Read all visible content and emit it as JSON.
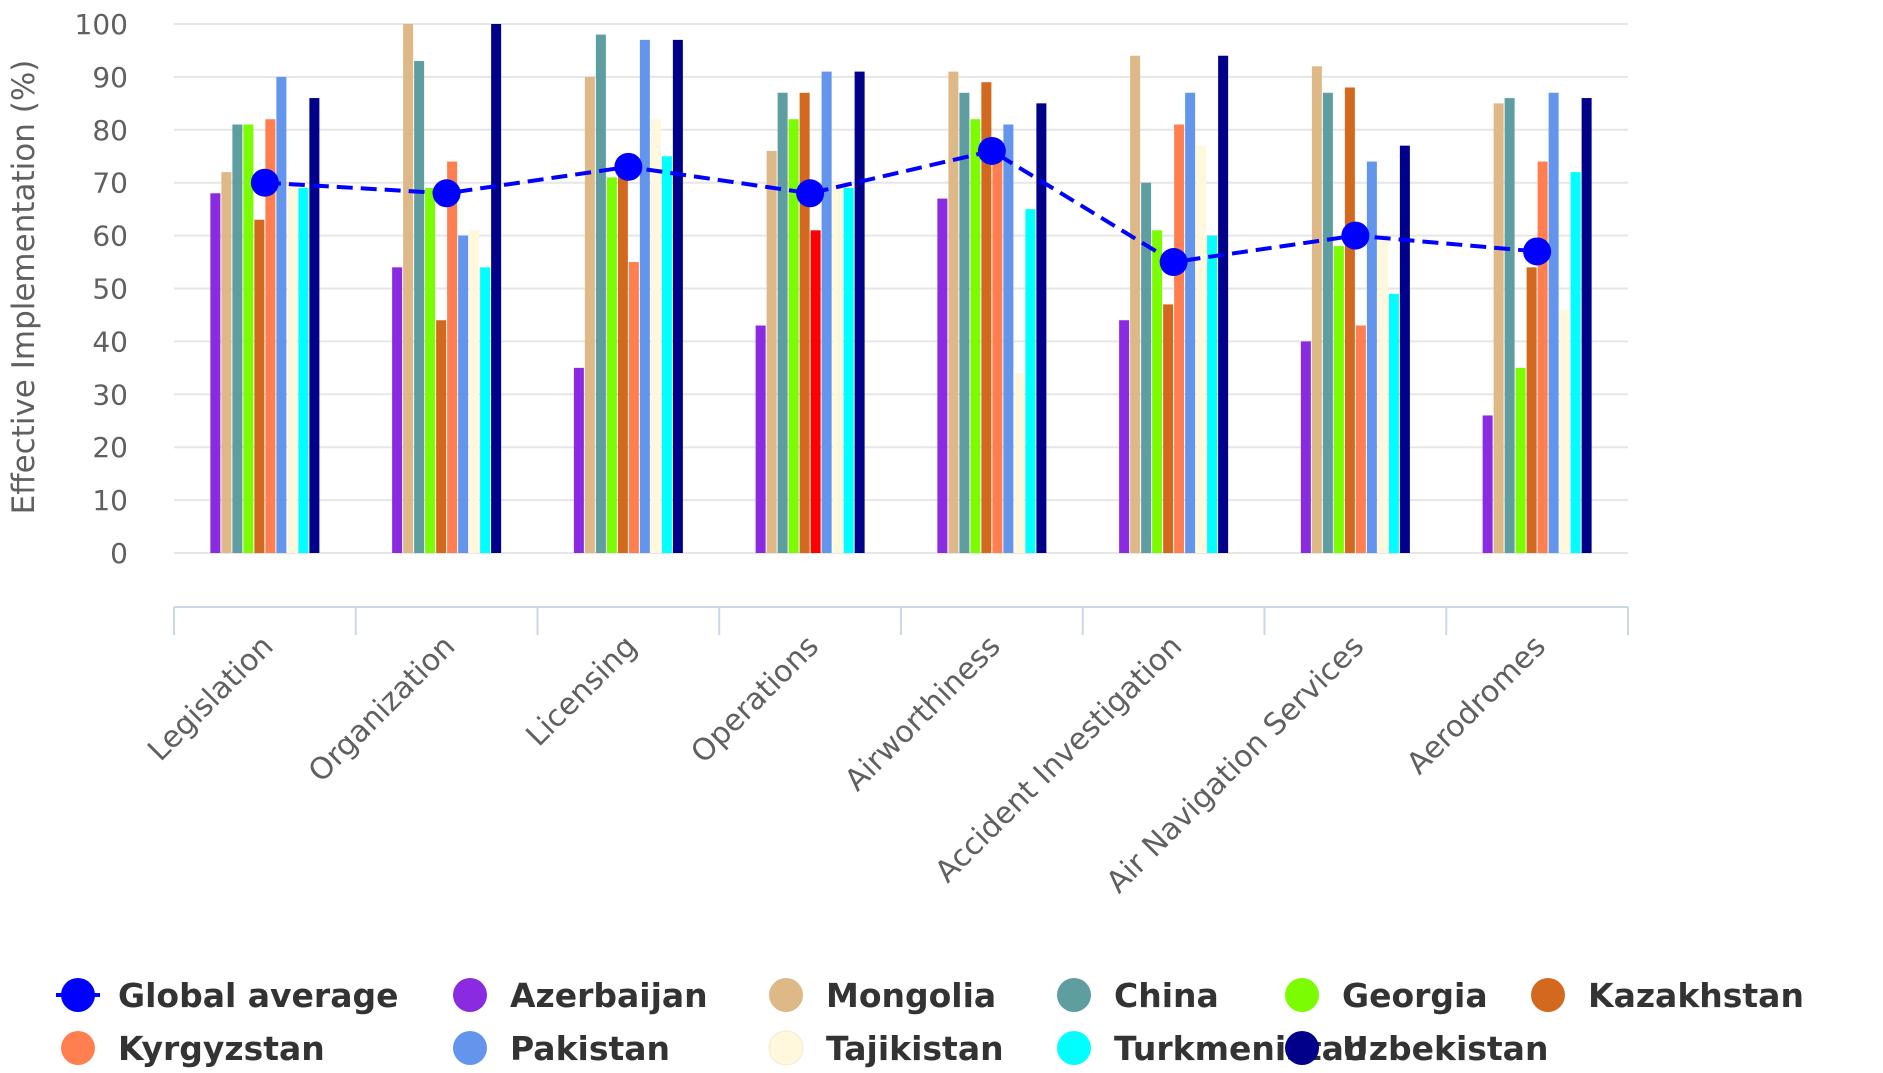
{
  "chart_data": {
    "type": "bar",
    "ylabel": "Effective Implementation (%)",
    "ylim": [
      0,
      100
    ],
    "yticks": [
      0,
      10,
      20,
      30,
      40,
      50,
      60,
      70,
      80,
      90,
      100
    ],
    "grid": true,
    "legend_position": "bottom",
    "categories": [
      "Legislation",
      "Organization",
      "Licensing",
      "Operations",
      "Airworthiness",
      "Accident Investigation",
      "Air Navigation Services",
      "Aerodromes"
    ],
    "line_series": {
      "name": "Global average",
      "color": "#0000ff",
      "style": "dashed",
      "values": [
        70,
        68,
        73,
        68,
        76,
        55,
        60,
        57
      ]
    },
    "series": [
      {
        "name": "Azerbaijan",
        "color": "#8a2be2",
        "values": [
          68,
          54,
          35,
          43,
          67,
          44,
          40,
          26
        ]
      },
      {
        "name": "Mongolia",
        "color": "#deb887",
        "values": [
          72,
          100,
          90,
          76,
          91,
          94,
          92,
          85
        ]
      },
      {
        "name": "China",
        "color": "#5f9ea0",
        "values": [
          81,
          93,
          98,
          87,
          87,
          70,
          87,
          86
        ]
      },
      {
        "name": "Georgia",
        "color": "#7cfc00",
        "values": [
          81,
          69,
          71,
          82,
          82,
          61,
          58,
          35
        ]
      },
      {
        "name": "Kazakhstan",
        "color": "#d2691e",
        "values": [
          63,
          44,
          74,
          87,
          89,
          47,
          88,
          54
        ]
      },
      {
        "name": "Kyrgyzstan",
        "color": "#ff7f50",
        "values": [
          82,
          74,
          55,
          61,
          78,
          81,
          43,
          74
        ]
      },
      {
        "name": "Pakistan",
        "color": "#6495ed",
        "values": [
          90,
          60,
          97,
          91,
          81,
          87,
          74,
          87
        ]
      },
      {
        "name": "Tajikistan",
        "color": "#fff8dc",
        "values": [
          70,
          61,
          82,
          70,
          34,
          77,
          59,
          46
        ]
      },
      {
        "name": "Turkmenistan",
        "color": "#00ffff",
        "values": [
          69,
          54,
          75,
          69,
          65,
          60,
          49,
          72
        ]
      },
      {
        "name": "Uzbekistan",
        "color": "#00008b",
        "values": [
          86,
          100,
          97,
          91,
          85,
          94,
          77,
          86
        ]
      }
    ],
    "highlight_bar": {
      "category": "Operations",
      "series": "Kyrgyzstan",
      "color": "#ff0000"
    }
  }
}
